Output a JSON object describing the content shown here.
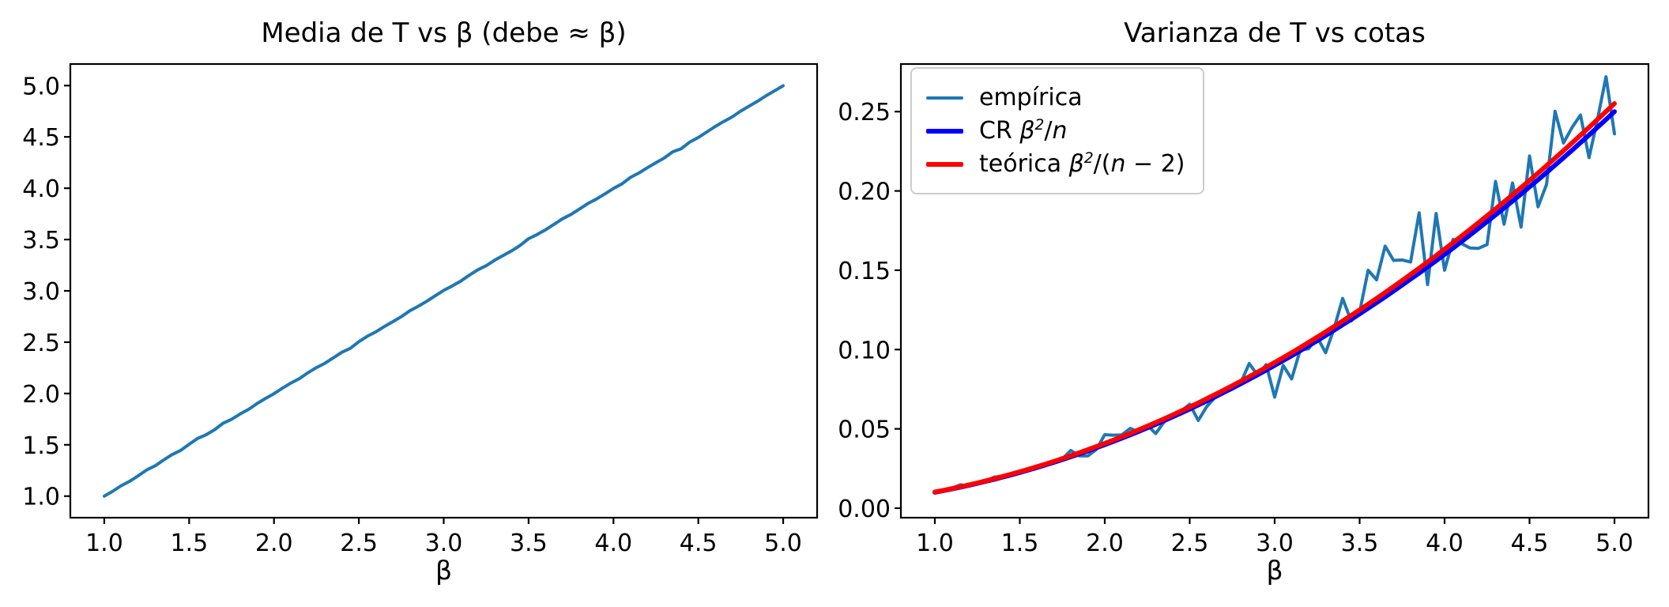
{
  "figure": {
    "background": "#ffffff",
    "frame_color": "#000000",
    "legend_border_color": "#cccccc"
  },
  "chart_data": [
    {
      "type": "line",
      "title": "Media de T vs β (debe ≈ β)",
      "xlabel": "β",
      "ylabel": "",
      "grid": false,
      "xlim": [
        0.8,
        5.2
      ],
      "ylim": [
        0.79,
        5.21
      ],
      "xtick_values": [
        1.0,
        1.5,
        2.0,
        2.5,
        3.0,
        3.5,
        4.0,
        4.5,
        5.0
      ],
      "xtick_labels": [
        "1.0",
        "1.5",
        "2.0",
        "2.5",
        "3.0",
        "3.5",
        "4.0",
        "4.5",
        "5.0"
      ],
      "ytick_values": [
        1.0,
        1.5,
        2.0,
        2.5,
        3.0,
        3.5,
        4.0,
        4.5,
        5.0
      ],
      "ytick_labels": [
        "1.0",
        "1.5",
        "2.0",
        "2.5",
        "3.0",
        "3.5",
        "4.0",
        "4.5",
        "5.0"
      ],
      "x": [
        1.0,
        1.05,
        1.1,
        1.15,
        1.2,
        1.25,
        1.3,
        1.35,
        1.4,
        1.45,
        1.5,
        1.55,
        1.6,
        1.65,
        1.7,
        1.75,
        1.8,
        1.85,
        1.9,
        1.95,
        2.0,
        2.05,
        2.1,
        2.15,
        2.2,
        2.25,
        2.3,
        2.35,
        2.4,
        2.45,
        2.5,
        2.55,
        2.6,
        2.65,
        2.7,
        2.75,
        2.8,
        2.85,
        2.9,
        2.95,
        3.0,
        3.05,
        3.1,
        3.15,
        3.2,
        3.25,
        3.3,
        3.35,
        3.4,
        3.45,
        3.5,
        3.55,
        3.6,
        3.65,
        3.7,
        3.75,
        3.8,
        3.85,
        3.9,
        3.95,
        4.0,
        4.05,
        4.1,
        4.15,
        4.2,
        4.25,
        4.3,
        4.35,
        4.4,
        4.45,
        4.5,
        4.55,
        4.6,
        4.65,
        4.7,
        4.75,
        4.8,
        4.85,
        4.9,
        4.95,
        5.0
      ],
      "series": [
        {
          "key": "media-line",
          "name": "media de T",
          "color": "#1f77b4",
          "linewidth": 4,
          "values": [
            1.0,
            1.048,
            1.102,
            1.145,
            1.198,
            1.255,
            1.296,
            1.352,
            1.405,
            1.445,
            1.505,
            1.562,
            1.598,
            1.648,
            1.71,
            1.748,
            1.8,
            1.845,
            1.902,
            1.952,
            1.998,
            2.052,
            2.102,
            2.145,
            2.202,
            2.252,
            2.295,
            2.348,
            2.402,
            2.44,
            2.505,
            2.558,
            2.6,
            2.652,
            2.7,
            2.748,
            2.805,
            2.85,
            2.898,
            2.952,
            3.005,
            3.048,
            3.095,
            3.152,
            3.205,
            3.245,
            3.298,
            3.345,
            3.39,
            3.442,
            3.508,
            3.548,
            3.595,
            3.648,
            3.702,
            3.745,
            3.798,
            3.852,
            3.895,
            3.945,
            3.998,
            4.042,
            4.105,
            4.148,
            4.2,
            4.248,
            4.295,
            4.355,
            4.385,
            4.45,
            4.495,
            4.548,
            4.602,
            4.65,
            4.695,
            4.752,
            4.8,
            4.848,
            4.902,
            4.95,
            4.998
          ]
        }
      ]
    },
    {
      "type": "line",
      "title": "Varianza de T vs cotas",
      "xlabel": "β",
      "ylabel": "",
      "grid": false,
      "xlim": [
        0.8,
        5.2
      ],
      "ylim": [
        -0.006,
        0.28
      ],
      "xtick_values": [
        1.0,
        1.5,
        2.0,
        2.5,
        3.0,
        3.5,
        4.0,
        4.5,
        5.0
      ],
      "xtick_labels": [
        "1.0",
        "1.5",
        "2.0",
        "2.5",
        "3.0",
        "3.5",
        "4.0",
        "4.5",
        "5.0"
      ],
      "ytick_values": [
        0.0,
        0.05,
        0.1,
        0.15,
        0.2,
        0.25
      ],
      "ytick_labels": [
        "0.00",
        "0.05",
        "0.10",
        "0.15",
        "0.20",
        "0.25"
      ],
      "x": [
        1.0,
        1.05,
        1.1,
        1.15,
        1.2,
        1.25,
        1.3,
        1.35,
        1.4,
        1.45,
        1.5,
        1.55,
        1.6,
        1.65,
        1.7,
        1.75,
        1.8,
        1.85,
        1.9,
        1.95,
        2.0,
        2.05,
        2.1,
        2.15,
        2.2,
        2.25,
        2.3,
        2.35,
        2.4,
        2.45,
        2.5,
        2.55,
        2.6,
        2.65,
        2.7,
        2.75,
        2.8,
        2.85,
        2.9,
        2.95,
        3.0,
        3.05,
        3.1,
        3.15,
        3.2,
        3.25,
        3.3,
        3.35,
        3.4,
        3.45,
        3.5,
        3.55,
        3.6,
        3.65,
        3.7,
        3.75,
        3.8,
        3.85,
        3.9,
        3.95,
        4.0,
        4.05,
        4.1,
        4.15,
        4.2,
        4.25,
        4.3,
        4.35,
        4.4,
        4.45,
        4.5,
        4.55,
        4.6,
        4.65,
        4.7,
        4.75,
        4.8,
        4.85,
        4.9,
        4.95,
        5.0
      ],
      "series": [
        {
          "key": "empirica-line",
          "name": "empírica",
          "color": "#1f77b4",
          "linewidth": 4,
          "values": [
            0.01,
            0.0112,
            0.0125,
            0.0148,
            0.014,
            0.0158,
            0.0172,
            0.0196,
            0.02,
            0.021,
            0.0232,
            0.0243,
            0.0252,
            0.0268,
            0.0295,
            0.031,
            0.0364,
            0.033,
            0.0329,
            0.037,
            0.0463,
            0.046,
            0.0462,
            0.0503,
            0.048,
            0.0523,
            0.047,
            0.0545,
            0.059,
            0.0613,
            0.0655,
            0.0553,
            0.064,
            0.07,
            0.0742,
            0.0768,
            0.079,
            0.0912,
            0.0838,
            0.0905,
            0.07,
            0.09,
            0.0815,
            0.0998,
            0.1005,
            0.1078,
            0.098,
            0.1135,
            0.1322,
            0.118,
            0.1235,
            0.15,
            0.144,
            0.1652,
            0.1562,
            0.1565,
            0.1552,
            0.1862,
            0.141,
            0.1858,
            0.15,
            0.1695,
            0.1668,
            0.164,
            0.1638,
            0.1662,
            0.206,
            0.179,
            0.205,
            0.1772,
            0.222,
            0.19,
            0.204,
            0.2502,
            0.2302,
            0.24,
            0.2478,
            0.221,
            0.245,
            0.272,
            0.236
          ]
        },
        {
          "key": "cr-line",
          "name": "CR β²/n",
          "color": "#0000ff",
          "linewidth": 6,
          "values": [
            0.01,
            0.01103,
            0.0121,
            0.01323,
            0.0144,
            0.01563,
            0.0169,
            0.01823,
            0.0196,
            0.02103,
            0.0225,
            0.02403,
            0.0256,
            0.02723,
            0.0289,
            0.03063,
            0.0324,
            0.03423,
            0.0361,
            0.03803,
            0.04,
            0.04203,
            0.0441,
            0.04623,
            0.0484,
            0.05063,
            0.0529,
            0.05523,
            0.0576,
            0.06003,
            0.0625,
            0.06503,
            0.0676,
            0.07023,
            0.0729,
            0.07563,
            0.0784,
            0.08123,
            0.0841,
            0.08703,
            0.09,
            0.09303,
            0.0961,
            0.09923,
            0.1024,
            0.10563,
            0.1089,
            0.11223,
            0.1156,
            0.11903,
            0.1225,
            0.12603,
            0.1296,
            0.13323,
            0.1369,
            0.14063,
            0.1444,
            0.14823,
            0.1521,
            0.15603,
            0.16,
            0.16403,
            0.1681,
            0.17223,
            0.1764,
            0.18063,
            0.1849,
            0.18923,
            0.1936,
            0.19803,
            0.2025,
            0.20703,
            0.2116,
            0.21623,
            0.2209,
            0.22563,
            0.2304,
            0.23523,
            0.2401,
            0.24503,
            0.25
          ]
        },
        {
          "key": "teorica-line",
          "name": "teórica β²/(n − 2)",
          "color": "#ff0000",
          "linewidth": 6,
          "values": [
            0.0102,
            0.01125,
            0.01235,
            0.0135,
            0.01469,
            0.01594,
            0.01724,
            0.0186,
            0.02,
            0.02145,
            0.02296,
            0.02452,
            0.02612,
            0.02778,
            0.02949,
            0.03125,
            0.03306,
            0.03492,
            0.03684,
            0.0388,
            0.04082,
            0.04288,
            0.045,
            0.04717,
            0.04939,
            0.05166,
            0.05398,
            0.05635,
            0.05878,
            0.06125,
            0.06378,
            0.06635,
            0.06898,
            0.07166,
            0.07439,
            0.07717,
            0.08,
            0.08288,
            0.08582,
            0.0888,
            0.09184,
            0.09492,
            0.09806,
            0.10125,
            0.10449,
            0.10778,
            0.11112,
            0.11451,
            0.11796,
            0.12145,
            0.125,
            0.1286,
            0.13224,
            0.13594,
            0.13969,
            0.14349,
            0.14735,
            0.15125,
            0.1552,
            0.15921,
            0.16327,
            0.16737,
            0.17153,
            0.17574,
            0.18,
            0.18431,
            0.18867,
            0.19309,
            0.19755,
            0.20207,
            0.20663,
            0.21125,
            0.21592,
            0.22064,
            0.22541,
            0.23023,
            0.2351,
            0.24003,
            0.245,
            0.25003,
            0.2551
          ]
        }
      ],
      "legend": {
        "position": "upper-left",
        "items": [
          {
            "key": "empirica",
            "color": "#1f77b4",
            "linewidth": 4,
            "label_plain": "empírica",
            "segments": [
              {
                "text": "empírica"
              }
            ]
          },
          {
            "key": "cr",
            "color": "#0000ff",
            "linewidth": 6,
            "label_plain": "CR β²/n",
            "segments": [
              {
                "text": "CR "
              },
              {
                "text": "β",
                "italic": true
              },
              {
                "text": "2",
                "sup": true
              },
              {
                "text": "/"
              },
              {
                "text": "n",
                "italic": true
              }
            ]
          },
          {
            "key": "teorica",
            "color": "#ff0000",
            "linewidth": 6,
            "label_plain": "teórica β²/(n − 2)",
            "segments": [
              {
                "text": "teórica "
              },
              {
                "text": "β",
                "italic": true
              },
              {
                "text": "2",
                "sup": true
              },
              {
                "text": "/("
              },
              {
                "text": "n",
                "italic": true
              },
              {
                "text": " − 2)"
              }
            ]
          }
        ]
      }
    }
  ]
}
